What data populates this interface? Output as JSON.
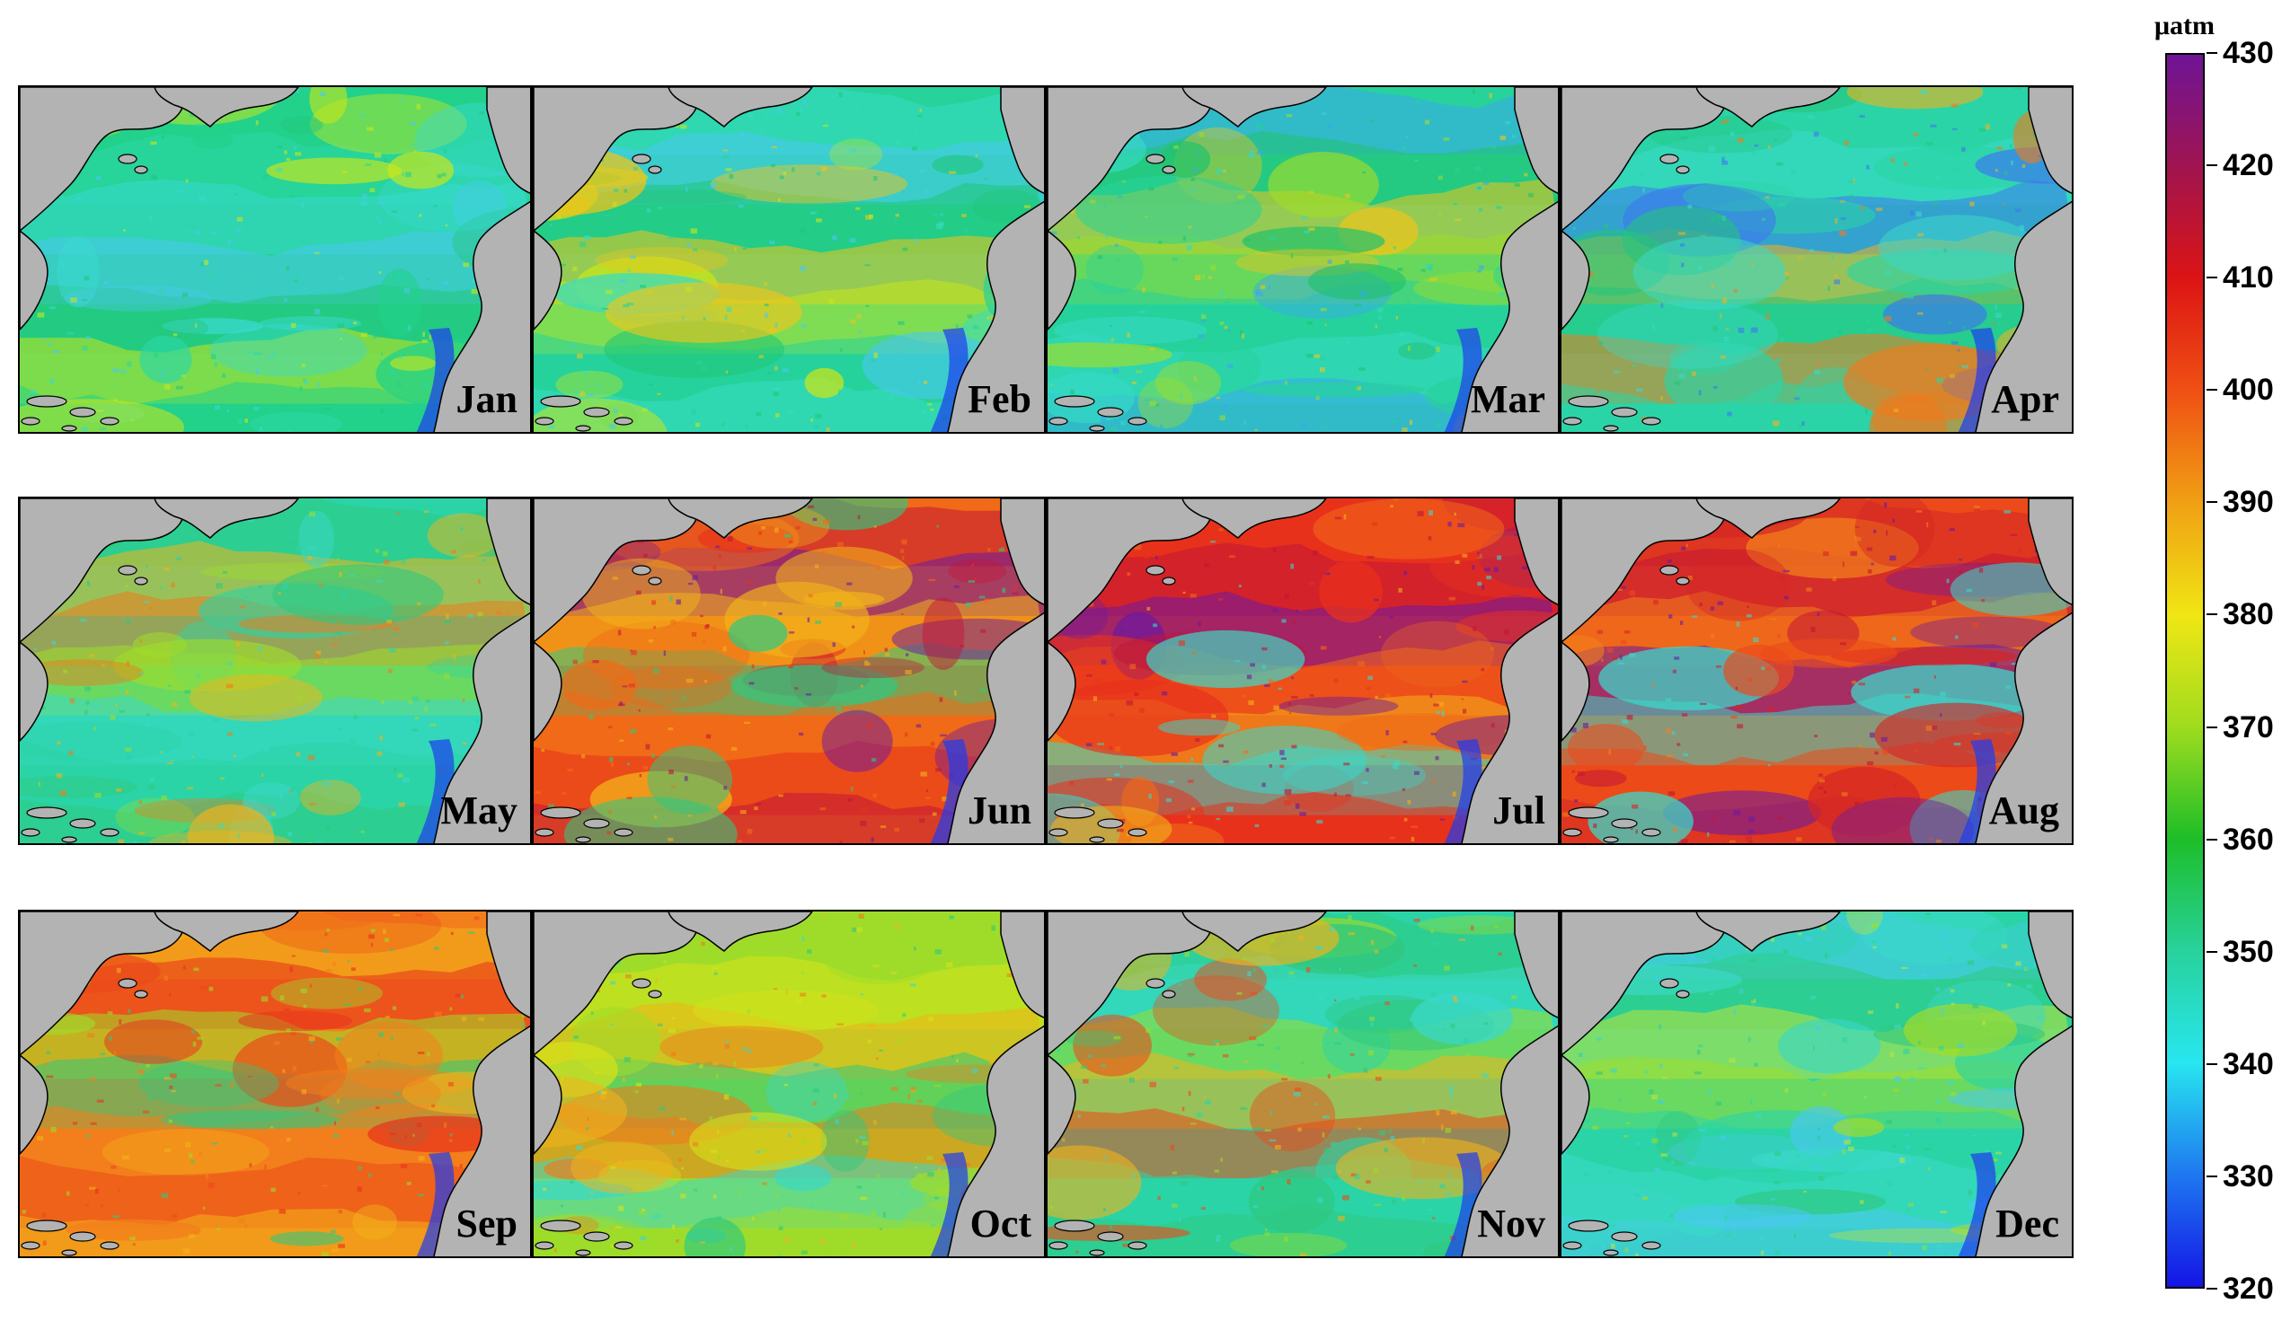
{
  "panels": [
    {
      "label": "Jan",
      "palette": [
        "#22d18a",
        "#2bd7a8",
        "#39d9d0",
        "#4ac8f0",
        "#25c67c",
        "#c8e61a"
      ]
    },
    {
      "label": "Feb",
      "palette": [
        "#27d29b",
        "#36dcc3",
        "#4ac8f0",
        "#21c777",
        "#f0c419",
        "#c8e61a"
      ]
    },
    {
      "label": "Mar",
      "palette": [
        "#27d29b",
        "#35d8c4",
        "#3aa7ef",
        "#22c26c",
        "#f0c419",
        "#9fdc2a"
      ]
    },
    {
      "label": "Apr",
      "palette": [
        "#2bd4a6",
        "#3ad8c9",
        "#3c78ee",
        "#f2b31a",
        "#25c57c",
        "#ef7b1c"
      ]
    },
    {
      "label": "May",
      "palette": [
        "#2bd4a6",
        "#30c87f",
        "#f2b31a",
        "#ef7b1c",
        "#9fdc2a",
        "#3ad8c9"
      ]
    },
    {
      "label": "Jun",
      "palette": [
        "#f06a18",
        "#e8311c",
        "#c21537",
        "#6b1aa0",
        "#f2b31a",
        "#30c87f"
      ]
    },
    {
      "label": "Jul",
      "palette": [
        "#e8311c",
        "#c21537",
        "#6b1aa0",
        "#f06a18",
        "#f2b31a",
        "#3ad8c9"
      ]
    },
    {
      "label": "Aug",
      "palette": [
        "#ec4a1a",
        "#d42626",
        "#c21537",
        "#f27f1c",
        "#6b1aa0",
        "#3ad8c9"
      ]
    },
    {
      "label": "Sep",
      "palette": [
        "#f27f1c",
        "#ec4a1a",
        "#f2b31a",
        "#e8311c",
        "#9fdc2a",
        "#30c87f"
      ]
    },
    {
      "label": "Oct",
      "palette": [
        "#9fdc2a",
        "#d6e31a",
        "#f2b31a",
        "#30c87f",
        "#ef7b1c",
        "#3ad8c9"
      ]
    },
    {
      "label": "Nov",
      "palette": [
        "#2bd4a6",
        "#30c87f",
        "#3ad8c9",
        "#9fdc2a",
        "#f2b31a",
        "#ec4a1a"
      ]
    },
    {
      "label": "Dec",
      "palette": [
        "#2bd4a6",
        "#3ad8c9",
        "#4ac8f0",
        "#30c87f",
        "#bfe33a",
        "#9fdc2a"
      ]
    }
  ],
  "colorbar": {
    "unit": "μatm",
    "min": 320,
    "max": 430,
    "ticks": [
      "320",
      "330",
      "340",
      "350",
      "360",
      "370",
      "380",
      "390",
      "400",
      "410",
      "420",
      "430"
    ],
    "stops": [
      "#1414e6",
      "#1e78f0",
      "#28e6f0",
      "#28d29b",
      "#1ebe28",
      "#a0dc1e",
      "#f0e614",
      "#f0a014",
      "#f05014",
      "#dc1414",
      "#a01450",
      "#6e1496"
    ]
  },
  "land_color": "#b3b3b3"
}
